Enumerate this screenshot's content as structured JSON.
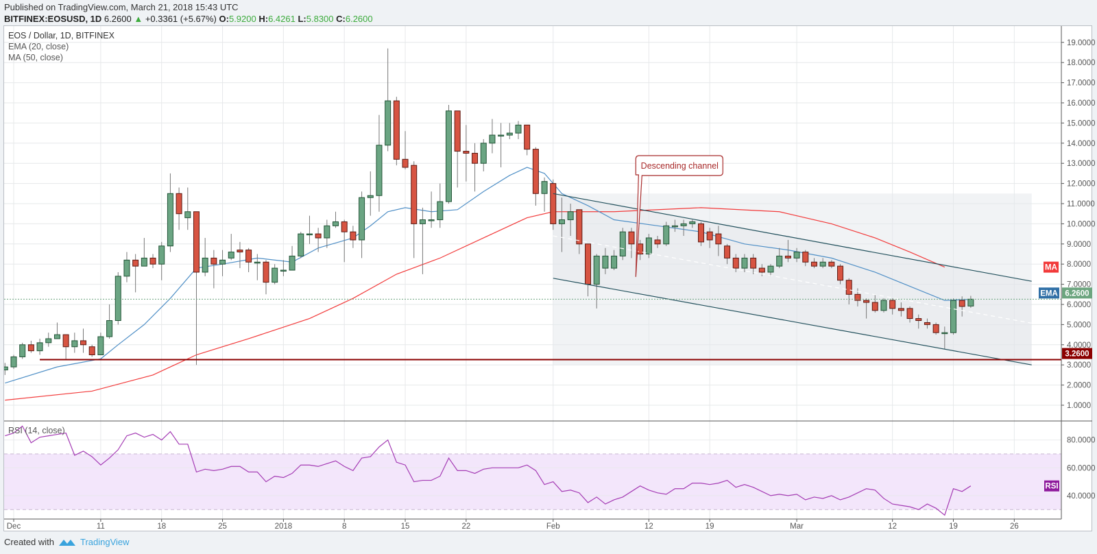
{
  "header": {
    "published": "Published on TradingView.com, March 21, 2018 15:43 UTC",
    "symbol": "BITFINEX:EOSUSD, 1D",
    "last": "6.2600",
    "change": "+0.3361 (+5.67%)",
    "o_label": "O:",
    "o": "5.9200",
    "h_label": "H:",
    "h": "6.4261",
    "l_label": "L:",
    "l": "5.8300",
    "c_label": "C:",
    "c": "6.2600"
  },
  "legend": {
    "title": "EOS / Dollar, 1D, BITFINEX",
    "ema": "EMA (20, close)",
    "ma": "MA (50, close)",
    "rsi": "RSI (14, close)"
  },
  "footer": {
    "created_with": "Created with",
    "brand": "TradingView"
  },
  "colors": {
    "up": "#6ba583",
    "up_border": "#225437",
    "down": "#d75442",
    "down_border": "#5b1a13",
    "ema": "#4f8fc6",
    "ma": "#f23a3a",
    "channel": "#1f4e5a",
    "support": "#8b0000",
    "rsi": "#a43bb4",
    "last": "#6ca57f"
  },
  "chart_data": {
    "type": "candlestick",
    "title": "EOS / Dollar, 1D, BITFINEX",
    "start_date": "2017-11-30",
    "ohlc": [
      [
        2.75,
        3.1,
        2.5,
        2.9
      ],
      [
        2.9,
        3.5,
        2.8,
        3.4
      ],
      [
        3.4,
        4.1,
        3.3,
        4.0
      ],
      [
        4.0,
        4.2,
        3.6,
        3.7
      ],
      [
        3.7,
        4.3,
        3.5,
        4.1
      ],
      [
        4.1,
        4.6,
        3.9,
        4.3
      ],
      [
        4.3,
        5.1,
        4.3,
        4.5
      ],
      [
        4.5,
        4.5,
        3.3,
        3.9
      ],
      [
        3.9,
        4.6,
        3.6,
        4.2
      ],
      [
        4.2,
        4.8,
        3.6,
        4.0
      ],
      [
        3.9,
        4.0,
        3.4,
        3.5
      ],
      [
        3.5,
        4.6,
        3.5,
        4.4
      ],
      [
        4.4,
        6.0,
        4.3,
        5.2
      ],
      [
        5.2,
        7.6,
        5.0,
        7.4
      ],
      [
        7.4,
        8.6,
        7.1,
        8.2
      ],
      [
        8.2,
        8.5,
        6.6,
        7.9
      ],
      [
        7.9,
        9.3,
        7.9,
        8.3
      ],
      [
        8.3,
        8.5,
        7.8,
        8.0
      ],
      [
        8.0,
        9.1,
        7.2,
        8.9
      ],
      [
        8.9,
        12.5,
        8.6,
        11.5
      ],
      [
        11.5,
        11.8,
        9.7,
        10.5
      ],
      [
        10.3,
        11.8,
        9.7,
        10.6
      ],
      [
        10.6,
        10.6,
        3.0,
        7.6
      ],
      [
        7.6,
        9.3,
        7.4,
        8.3
      ],
      [
        8.3,
        8.7,
        6.8,
        8.0
      ],
      [
        8.0,
        8.7,
        7.4,
        8.2
      ],
      [
        8.3,
        9.5,
        8.2,
        8.6
      ],
      [
        8.7,
        9.1,
        7.8,
        8.6
      ],
      [
        8.7,
        8.8,
        7.6,
        8.1
      ],
      [
        8.1,
        8.5,
        7.2,
        8.1
      ],
      [
        8.1,
        8.2,
        6.5,
        7.1
      ],
      [
        7.1,
        8.0,
        7.0,
        7.8
      ],
      [
        7.7,
        8.2,
        7.4,
        7.7
      ],
      [
        7.7,
        8.9,
        7.7,
        8.4
      ],
      [
        8.4,
        9.6,
        8.3,
        9.5
      ],
      [
        9.5,
        10.4,
        9.0,
        9.5
      ],
      [
        9.5,
        9.8,
        8.6,
        9.3
      ],
      [
        9.3,
        10.2,
        8.8,
        9.9
      ],
      [
        9.9,
        10.6,
        9.8,
        10.1
      ],
      [
        10.1,
        10.2,
        8.1,
        9.6
      ],
      [
        9.6,
        9.9,
        8.8,
        9.2
      ],
      [
        9.2,
        11.6,
        8.3,
        11.3
      ],
      [
        11.3,
        12.6,
        10.4,
        11.4
      ],
      [
        11.4,
        15.4,
        10.6,
        13.9
      ],
      [
        13.9,
        18.7,
        13.6,
        16.1
      ],
      [
        16.1,
        16.3,
        12.9,
        13.2
      ],
      [
        13.2,
        14.6,
        12.7,
        12.8
      ],
      [
        12.9,
        13.1,
        8.3,
        10.0
      ],
      [
        10.0,
        10.8,
        7.5,
        10.2
      ],
      [
        10.2,
        11.6,
        9.8,
        10.2
      ],
      [
        10.2,
        12.0,
        9.8,
        11.1
      ],
      [
        11.1,
        15.9,
        11.0,
        15.6
      ],
      [
        15.6,
        15.6,
        11.8,
        13.6
      ],
      [
        13.6,
        14.9,
        12.1,
        13.5
      ],
      [
        13.5,
        14.0,
        11.6,
        13.0
      ],
      [
        13.0,
        14.2,
        12.6,
        14.0
      ],
      [
        14.0,
        15.2,
        13.5,
        14.4
      ],
      [
        14.4,
        15.0,
        12.8,
        14.4
      ],
      [
        14.4,
        15.0,
        14.2,
        14.5
      ],
      [
        14.5,
        15.1,
        14.2,
        14.9
      ],
      [
        14.9,
        14.9,
        13.4,
        13.7
      ],
      [
        13.7,
        13.8,
        10.9,
        11.5
      ],
      [
        11.5,
        12.3,
        10.6,
        12.1
      ],
      [
        12.0,
        12.2,
        9.7,
        10.0
      ],
      [
        10.0,
        11.3,
        8.6,
        10.2
      ],
      [
        10.2,
        11.0,
        9.4,
        10.6
      ],
      [
        10.7,
        10.7,
        8.5,
        9.0
      ],
      [
        9.0,
        9.0,
        6.4,
        7.0
      ],
      [
        7.0,
        8.5,
        5.8,
        8.4
      ],
      [
        7.8,
        8.8,
        7.5,
        8.4
      ],
      [
        7.8,
        8.7,
        7.7,
        8.4
      ],
      [
        8.4,
        9.8,
        8.2,
        9.6
      ],
      [
        9.6,
        9.8,
        8.3,
        9.0
      ],
      [
        9.0,
        9.2,
        8.2,
        8.5
      ],
      [
        8.5,
        9.5,
        8.3,
        9.3
      ],
      [
        9.2,
        9.4,
        8.8,
        9.0
      ],
      [
        9.0,
        10.1,
        8.9,
        9.9
      ],
      [
        9.9,
        10.2,
        9.6,
        9.9
      ],
      [
        9.9,
        10.2,
        9.4,
        10.0
      ],
      [
        10.0,
        10.2,
        9.8,
        10.1
      ],
      [
        10.0,
        10.1,
        8.9,
        9.1
      ],
      [
        9.6,
        9.8,
        8.8,
        9.2
      ],
      [
        9.5,
        9.9,
        8.4,
        9.0
      ],
      [
        8.9,
        9.0,
        8.0,
        8.3
      ],
      [
        8.3,
        8.5,
        7.6,
        7.8
      ],
      [
        7.8,
        8.5,
        7.6,
        8.3
      ],
      [
        8.3,
        8.5,
        7.5,
        7.8
      ],
      [
        7.8,
        8.0,
        7.4,
        7.6
      ],
      [
        7.6,
        8.0,
        7.4,
        7.9
      ],
      [
        7.9,
        8.8,
        7.8,
        8.4
      ],
      [
        8.4,
        9.2,
        8.1,
        8.3
      ],
      [
        8.3,
        8.8,
        8.1,
        8.6
      ],
      [
        8.6,
        8.7,
        7.9,
        8.1
      ],
      [
        8.1,
        8.3,
        7.8,
        7.9
      ],
      [
        7.9,
        8.3,
        7.8,
        8.1
      ],
      [
        8.1,
        8.2,
        7.8,
        7.9
      ],
      [
        7.9,
        8.0,
        7.0,
        7.2
      ],
      [
        7.2,
        7.3,
        6.0,
        6.5
      ],
      [
        6.5,
        6.8,
        5.9,
        6.2
      ],
      [
        6.2,
        6.3,
        5.3,
        6.1
      ],
      [
        6.1,
        6.5,
        5.6,
        5.7
      ],
      [
        5.7,
        6.3,
        5.6,
        6.2
      ],
      [
        6.2,
        6.3,
        5.5,
        5.8
      ],
      [
        5.8,
        6.1,
        5.4,
        5.7
      ],
      [
        5.8,
        5.9,
        5.1,
        5.3
      ],
      [
        5.3,
        5.5,
        4.8,
        5.2
      ],
      [
        5.1,
        5.3,
        4.8,
        5.0
      ],
      [
        5.0,
        5.1,
        4.5,
        4.6
      ],
      [
        4.6,
        4.9,
        3.8,
        4.6
      ],
      [
        4.6,
        6.3,
        4.5,
        6.2
      ],
      [
        6.2,
        6.4,
        5.4,
        5.9
      ],
      [
        5.92,
        6.4261,
        5.83,
        6.26
      ]
    ],
    "ema20": [
      [
        0,
        2.1
      ],
      [
        6,
        2.9
      ],
      [
        11,
        3.3
      ],
      [
        13,
        4.0
      ],
      [
        16,
        5.0
      ],
      [
        19,
        6.3
      ],
      [
        22,
        7.8
      ],
      [
        25,
        8.0
      ],
      [
        29,
        8.3
      ],
      [
        33,
        8.1
      ],
      [
        36,
        8.8
      ],
      [
        40,
        9.3
      ],
      [
        42,
        9.9
      ],
      [
        44,
        10.6
      ],
      [
        46,
        10.8
      ],
      [
        49,
        10.6
      ],
      [
        52,
        10.7
      ],
      [
        55,
        11.6
      ],
      [
        58,
        12.4
      ],
      [
        60,
        12.8
      ],
      [
        62,
        12.5
      ],
      [
        64,
        11.5
      ],
      [
        67,
        10.9
      ],
      [
        70,
        10.2
      ],
      [
        75,
        9.9
      ],
      [
        80,
        9.6
      ],
      [
        85,
        9.0
      ],
      [
        90,
        8.7
      ],
      [
        95,
        8.3
      ],
      [
        100,
        7.6
      ],
      [
        104,
        6.9
      ],
      [
        108,
        6.2
      ],
      [
        111,
        6.25
      ]
    ],
    "ma50": [
      [
        0,
        1.25
      ],
      [
        10,
        1.7
      ],
      [
        17,
        2.5
      ],
      [
        22,
        3.5
      ],
      [
        28,
        4.3
      ],
      [
        35,
        5.3
      ],
      [
        40,
        6.3
      ],
      [
        45,
        7.5
      ],
      [
        50,
        8.3
      ],
      [
        55,
        9.3
      ],
      [
        60,
        10.3
      ],
      [
        63,
        10.6
      ],
      [
        70,
        10.6
      ],
      [
        80,
        10.8
      ],
      [
        89,
        10.6
      ],
      [
        95,
        10.0
      ],
      [
        100,
        9.3
      ],
      [
        104,
        8.6
      ],
      [
        108,
        7.85
      ]
    ],
    "channel": {
      "label": "Descending channel",
      "upper": [
        [
          63,
          11.5
        ],
        [
          118,
          7.15
        ]
      ],
      "lower": [
        [
          63,
          7.3
        ],
        [
          118,
          3.0
        ]
      ],
      "mid": [
        [
          63,
          9.4
        ],
        [
          118,
          5.07
        ]
      ]
    },
    "support": {
      "value": 3.26,
      "label": "3.2600",
      "from_day": 4
    },
    "last_price": {
      "value": 6.26,
      "label": "6.2600"
    },
    "badges": {
      "ma": "MA",
      "ema": "EMA",
      "rsi": "RSI"
    },
    "ma_badge_value": 7.85,
    "rsi14": [
      83,
      85,
      90,
      78,
      82,
      83,
      84,
      85,
      69,
      72,
      68,
      62,
      67,
      73,
      83,
      85,
      82,
      84,
      80,
      86,
      77,
      77,
      57,
      59,
      58,
      59,
      61,
      61,
      57,
      57,
      50,
      54,
      53,
      56,
      62,
      62,
      61,
      63,
      65,
      61,
      58,
      67,
      68,
      75,
      80,
      64,
      62,
      50,
      51,
      51,
      54,
      67,
      58,
      58,
      56,
      59,
      60,
      60,
      60,
      60,
      62,
      58,
      48,
      50,
      43,
      44,
      42,
      35,
      39,
      34,
      37,
      39,
      43,
      47,
      44,
      42,
      41,
      45,
      45,
      49,
      49,
      48,
      49,
      51,
      46,
      48,
      46,
      43,
      40,
      41,
      40,
      41,
      37,
      39,
      38,
      40,
      37,
      39,
      42,
      45,
      44,
      38,
      34,
      33,
      32,
      30,
      34,
      31,
      26,
      45,
      43,
      47
    ],
    "rsi_levels": [
      30,
      70
    ],
    "price_axis": {
      "ticks": [
        1,
        2,
        3,
        4,
        5,
        6,
        7,
        8,
        9,
        10,
        11,
        12,
        13,
        14,
        15,
        16,
        17,
        18,
        19
      ],
      "labels": [
        "1.0000",
        "2.0000",
        "3.0000",
        "4.0000",
        "5.0000",
        "6.0000",
        "7.0000",
        "8.0000",
        "9.0000",
        "10.0000",
        "11.0000",
        "12.0000",
        "13.0000",
        "14.0000",
        "15.0000",
        "16.0000",
        "17.0000",
        "18.0000",
        "19.0000"
      ],
      "range": [
        0.3,
        19.6
      ]
    },
    "rsi_axis": {
      "ticks": [
        40,
        60,
        80
      ],
      "labels": [
        "40.0000",
        "60.0000",
        "80.0000"
      ]
    },
    "x_axis": {
      "ticks": [
        1,
        11,
        18,
        25,
        32,
        39,
        46,
        53,
        63,
        74,
        81,
        91,
        102,
        109,
        116
      ],
      "labels": [
        "Dec",
        "11",
        "18",
        "25",
        "2018",
        "8",
        "15",
        "22",
        "Feb",
        "12",
        "19",
        "Mar",
        "12",
        "19",
        "26"
      ]
    }
  }
}
